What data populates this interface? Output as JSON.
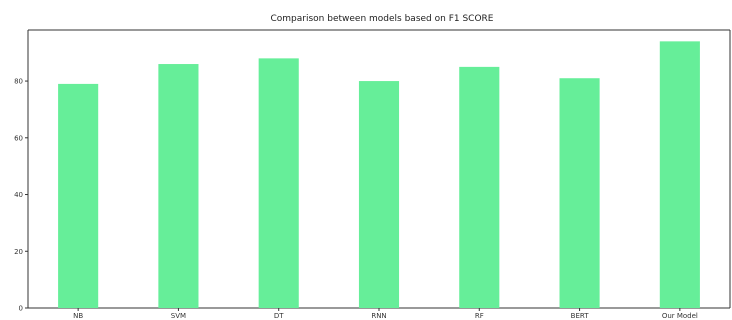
{
  "chart_data": {
    "type": "bar",
    "title": "Comparison between models based on F1 SCORE",
    "xlabel": "",
    "ylabel": "",
    "categories": [
      "NB",
      "SVM",
      "DT",
      "RNN",
      "RF",
      "BERT",
      "Our Model"
    ],
    "values": [
      79,
      86,
      88,
      80,
      85,
      81,
      94
    ],
    "ylim": [
      0,
      98
    ],
    "yticks": [
      0,
      20,
      40,
      60,
      80
    ],
    "bar_color": "#66ee99",
    "grid": false,
    "legend": "none"
  }
}
